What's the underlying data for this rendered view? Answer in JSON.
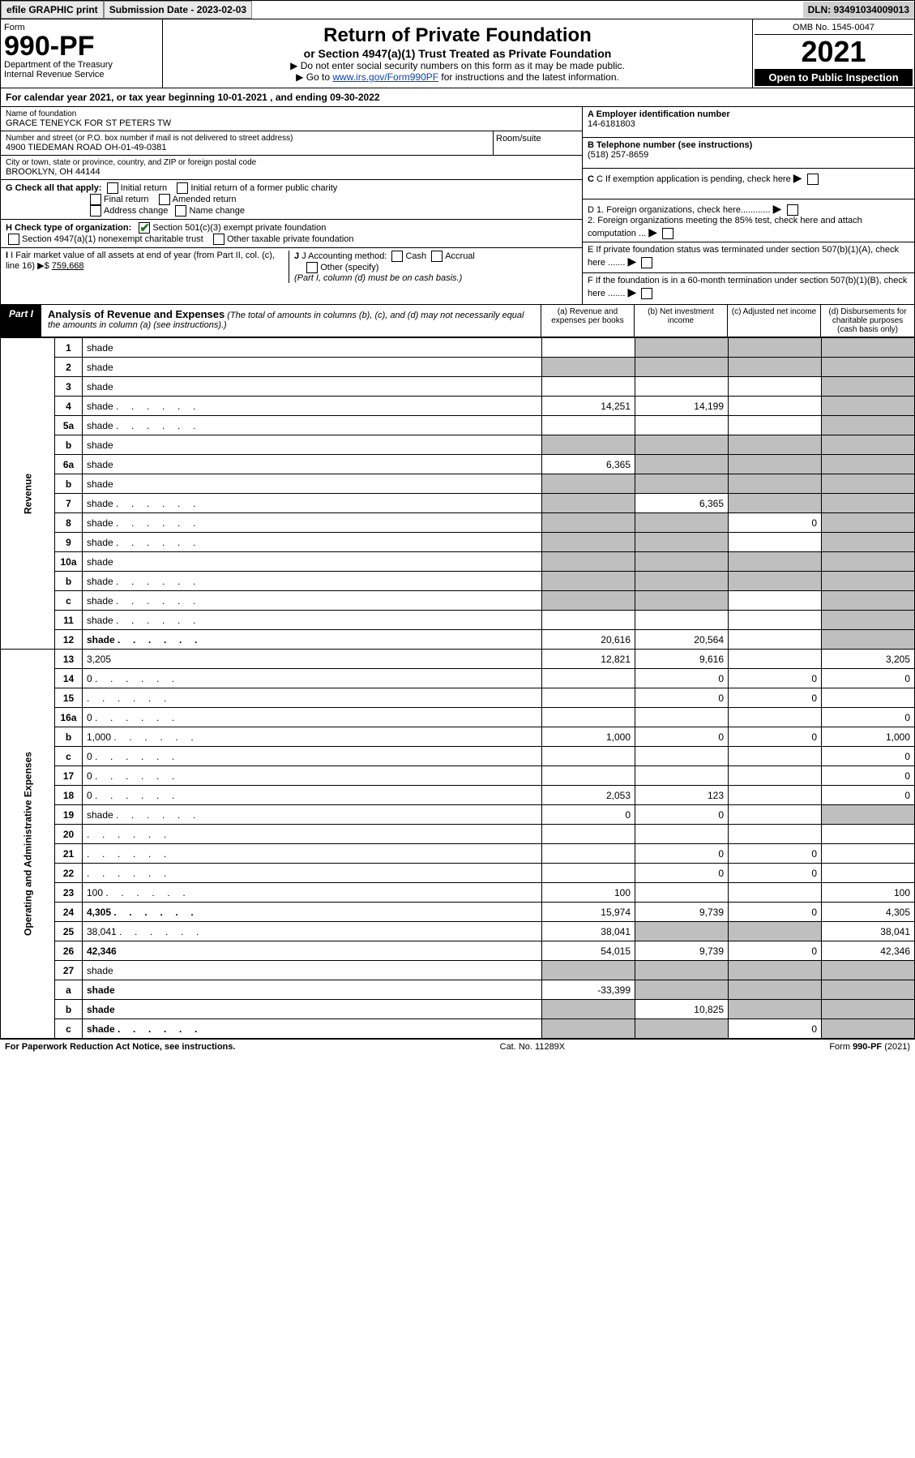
{
  "top": {
    "efile": "efile GRAPHIC print",
    "subm_lbl": "Submission Date - 2023-02-03",
    "dln": "DLN: 93491034009013"
  },
  "head": {
    "form_word": "Form",
    "form_no": "990-PF",
    "dept": "Department of the Treasury",
    "irs": "Internal Revenue Service",
    "title": "Return of Private Foundation",
    "subtitle": "or Section 4947(a)(1) Trust Treated as Private Foundation",
    "note1": "▶ Do not enter social security numbers on this form as it may be made public.",
    "note2_pre": "▶ Go to ",
    "note2_link": "www.irs.gov/Form990PF",
    "note2_post": " for instructions and the latest information.",
    "omb": "OMB No. 1545-0047",
    "year": "2021",
    "open": "Open to Public Inspection"
  },
  "cal": "For calendar year 2021, or tax year beginning 10-01-2021              , and ending 09-30-2022",
  "ident": {
    "name_lbl": "Name of foundation",
    "name": "GRACE TENEYCK FOR ST PETERS TW",
    "addr_lbl": "Number and street (or P.O. box number if mail is not delivered to street address)",
    "addr": "4900 TIEDEMAN ROAD OH-01-49-0381",
    "room_lbl": "Room/suite",
    "city_lbl": "City or town, state or province, country, and ZIP or foreign postal code",
    "city": "BROOKLYN, OH  44144",
    "ein_lbl": "A Employer identification number",
    "ein": "14-6181803",
    "tel_lbl": "B Telephone number (see instructions)",
    "tel": "(518) 257-8659",
    "c_lbl": "C If exemption application is pending, check here",
    "d1": "D 1. Foreign organizations, check here............",
    "d2": "2. Foreign organizations meeting the 85% test, check here and attach computation ...",
    "e": "E  If private foundation status was terminated under section 507(b)(1)(A), check here .......",
    "f": "F  If the foundation is in a 60-month termination under section 507(b)(1)(B), check here .......",
    "g_lbl": "G Check all that apply:",
    "g_opts": [
      "Initial return",
      "Initial return of a former public charity",
      "Final return",
      "Amended return",
      "Address change",
      "Name change"
    ],
    "h_lbl": "H Check type of organization:",
    "h1": "Section 501(c)(3) exempt private foundation",
    "h2": "Section 4947(a)(1) nonexempt charitable trust",
    "h3": "Other taxable private foundation",
    "i_lbl": "I Fair market value of all assets at end of year (from Part II, col. (c), line 16) ▶$ ",
    "i_val": "759,668",
    "j_lbl": "J Accounting method:",
    "j_opts": [
      "Cash",
      "Accrual"
    ],
    "j_other": "Other (specify)",
    "j_note": "(Part I, column (d) must be on cash basis.)"
  },
  "part1": {
    "tab": "Part I",
    "title": "Analysis of Revenue and Expenses",
    "title_note": " (The total of amounts in columns (b), (c), and (d) may not necessarily equal the amounts in column (a) (see instructions).)",
    "cols": [
      "(a)  Revenue and expenses per books",
      "(b)  Net investment income",
      "(c)  Adjusted net income",
      "(d)  Disbursements for charitable purposes (cash basis only)"
    ]
  },
  "sides": {
    "rev": "Revenue",
    "exp": "Operating and Administrative Expenses"
  },
  "rows": [
    {
      "n": "1",
      "d": "shade",
      "a": "",
      "b": "shade",
      "c": "shade"
    },
    {
      "n": "2",
      "d": "shade",
      "a": "shade",
      "b": "shade",
      "c": "shade",
      "dots": false,
      "bold_not": true
    },
    {
      "n": "3",
      "d": "shade",
      "a": "",
      "b": "",
      "c": ""
    },
    {
      "n": "4",
      "d": "shade",
      "a": "14,251",
      "b": "14,199",
      "c": "",
      "dots": true
    },
    {
      "n": "5a",
      "d": "shade",
      "a": "",
      "b": "",
      "c": "",
      "dots": true
    },
    {
      "n": "b",
      "d": "shade",
      "a": "shade",
      "b": "shade",
      "c": "shade"
    },
    {
      "n": "6a",
      "d": "shade",
      "a": "6,365",
      "b": "shade",
      "c": "shade"
    },
    {
      "n": "b",
      "d": "shade",
      "a": "shade",
      "b": "shade",
      "c": "shade"
    },
    {
      "n": "7",
      "d": "shade",
      "a": "shade",
      "b": "6,365",
      "c": "shade",
      "dots": true
    },
    {
      "n": "8",
      "d": "shade",
      "a": "shade",
      "b": "shade",
      "c": "0",
      "dots": true
    },
    {
      "n": "9",
      "d": "shade",
      "a": "shade",
      "b": "shade",
      "c": "",
      "dots": true
    },
    {
      "n": "10a",
      "d": "shade",
      "a": "shade",
      "b": "shade",
      "c": "shade"
    },
    {
      "n": "b",
      "d": "shade",
      "a": "shade",
      "b": "shade",
      "c": "shade",
      "dots": true
    },
    {
      "n": "c",
      "d": "shade",
      "a": "shade",
      "b": "shade",
      "c": "",
      "dots": true
    },
    {
      "n": "11",
      "d": "shade",
      "a": "",
      "b": "",
      "c": "",
      "dots": true
    },
    {
      "n": "12",
      "d": "shade",
      "a": "20,616",
      "b": "20,564",
      "c": "",
      "dots": true,
      "bold": true
    }
  ],
  "exp_rows": [
    {
      "n": "13",
      "d": "3,205",
      "a": "12,821",
      "b": "9,616",
      "c": ""
    },
    {
      "n": "14",
      "d": "0",
      "a": "",
      "b": "0",
      "c": "0",
      "dots": true
    },
    {
      "n": "15",
      "d": "",
      "a": "",
      "b": "0",
      "c": "0",
      "dots": true
    },
    {
      "n": "16a",
      "d": "0",
      "a": "",
      "b": "",
      "c": "",
      "dots": true
    },
    {
      "n": "b",
      "d": "1,000",
      "a": "1,000",
      "b": "0",
      "c": "0",
      "dots": true
    },
    {
      "n": "c",
      "d": "0",
      "a": "",
      "b": "",
      "c": "",
      "dots": true
    },
    {
      "n": "17",
      "d": "0",
      "a": "",
      "b": "",
      "c": "",
      "dots": true
    },
    {
      "n": "18",
      "d": "0",
      "a": "2,053",
      "b": "123",
      "c": "",
      "dots": true
    },
    {
      "n": "19",
      "d": "shade",
      "a": "0",
      "b": "0",
      "c": "",
      "dots": true
    },
    {
      "n": "20",
      "d": "",
      "a": "",
      "b": "",
      "c": "",
      "dots": true
    },
    {
      "n": "21",
      "d": "",
      "a": "",
      "b": "0",
      "c": "0",
      "dots": true
    },
    {
      "n": "22",
      "d": "",
      "a": "",
      "b": "0",
      "c": "0",
      "dots": true
    },
    {
      "n": "23",
      "d": "100",
      "a": "100",
      "b": "",
      "c": "",
      "dots": true
    },
    {
      "n": "24",
      "d": "4,305",
      "a": "15,974",
      "b": "9,739",
      "c": "0",
      "dots": true,
      "bold": true
    },
    {
      "n": "25",
      "d": "38,041",
      "a": "38,041",
      "b": "shade",
      "c": "shade",
      "dots": true
    },
    {
      "n": "26",
      "d": "42,346",
      "a": "54,015",
      "b": "9,739",
      "c": "0",
      "bold": true
    },
    {
      "n": "27",
      "d": "shade",
      "a": "shade",
      "b": "shade",
      "c": "shade"
    },
    {
      "n": "a",
      "d": "shade",
      "a": "-33,399",
      "b": "shade",
      "c": "shade",
      "bold": true
    },
    {
      "n": "b",
      "d": "shade",
      "a": "shade",
      "b": "10,825",
      "c": "shade",
      "bold": true
    },
    {
      "n": "c",
      "d": "shade",
      "a": "shade",
      "b": "shade",
      "c": "0",
      "bold": true,
      "dots": true
    }
  ],
  "foot": {
    "left": "For Paperwork Reduction Act Notice, see instructions.",
    "mid": "Cat. No. 11289X",
    "right": "Form 990-PF (2021)"
  },
  "colors": {
    "shade": "#bfbfbf",
    "black": "#000000",
    "link": "#0044cc",
    "check": "#1a7a1a"
  }
}
